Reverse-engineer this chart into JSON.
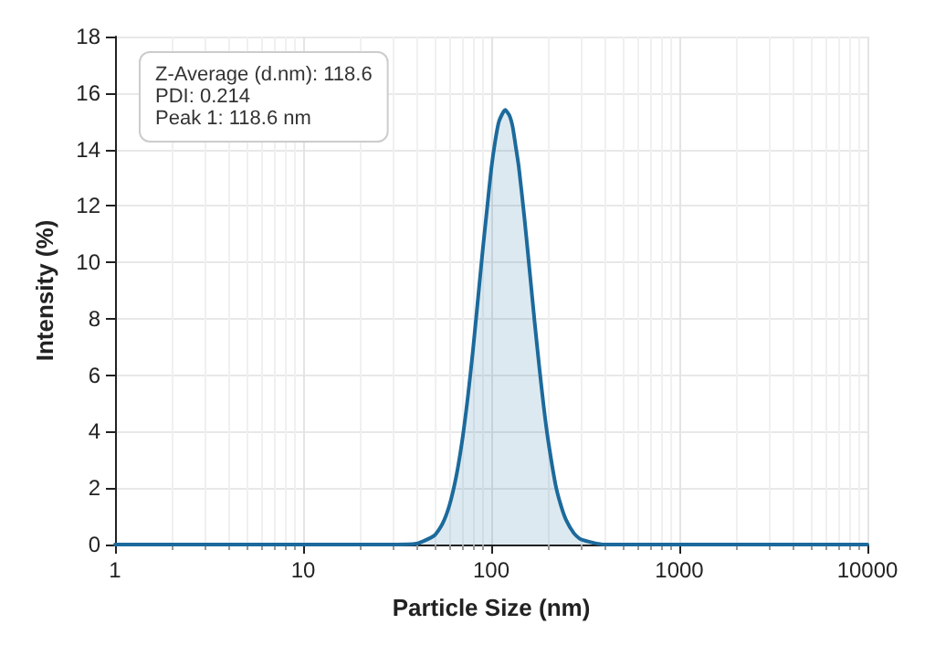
{
  "chart_data": {
    "type": "area",
    "xlabel": "Particle Size (nm)",
    "ylabel": "Intensity (%)",
    "log": "x",
    "grid": true,
    "annotations": [
      "Z-Average (d.nm): 118.6\nPDI: 0.214\nPeak 1: 118.6 nm"
    ],
    "xlim": [
      1,
      10000
    ],
    "xticks": [
      1,
      10,
      100,
      1000,
      10000
    ],
    "ylim": [
      0,
      18
    ],
    "yticks": [
      0,
      2,
      4,
      6,
      8,
      10,
      12,
      14,
      16,
      18
    ],
    "x": [
      1,
      10,
      30,
      40,
      50,
      55,
      60,
      65,
      70,
      75,
      80,
      85,
      90,
      95,
      100,
      105,
      110,
      118.6,
      125,
      130,
      135,
      140,
      150,
      160,
      170,
      180,
      190,
      200,
      220,
      235,
      250,
      275,
      300,
      400,
      1000,
      10000
    ],
    "series": [
      {
        "color": "#1c6a9c",
        "values": [
          0,
          0,
          0,
          0.03,
          0.33,
          0.73,
          1.4,
          2.38,
          3.66,
          5.2,
          6.9,
          8.7,
          10.4,
          11.9,
          13.3,
          14.3,
          15.0,
          15.4,
          15.2,
          14.8,
          14.1,
          13.4,
          11.6,
          9.7,
          7.9,
          6.3,
          4.9,
          3.76,
          2.1,
          1.37,
          0.87,
          0.4,
          0.18,
          0,
          0,
          0
        ]
      }
    ]
  }
}
